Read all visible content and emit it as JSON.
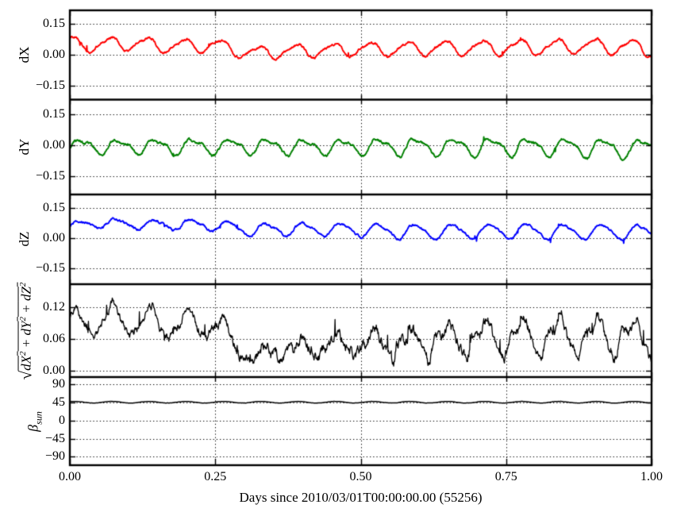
{
  "chart_data": {
    "type": "line",
    "title": "",
    "xlabel": "Days since 2010/03/01T00:00:00.00 (55256)",
    "xlim": [
      0,
      1
    ],
    "xticks": [
      [
        0,
        "0.00"
      ],
      [
        0.25,
        "0.25"
      ],
      [
        0.5,
        "0.50"
      ],
      [
        0.75,
        "0.75"
      ],
      [
        1,
        "1.00"
      ]
    ],
    "x_gridlines": [
      0.25,
      0.5,
      0.75
    ],
    "grid_style": "dotted",
    "legend": "none",
    "panels": [
      {
        "name": "dX",
        "ylabel": "dX",
        "color": "#ff0000",
        "ylim": [
          -0.215,
          0.215
        ],
        "yticks": [
          [
            0.15,
            "0.15"
          ],
          [
            0,
            "0.00"
          ],
          [
            -0.15,
            "−0.15"
          ]
        ],
        "series": {
          "n": 1440,
          "seed": 101,
          "freq_cycles_per_day": 15.6,
          "phase": 1.2,
          "harm2": 0.25,
          "harm2_phase": 2.6,
          "mean_anchors": [
            [
              0,
              0.055
            ],
            [
              0.05,
              0.048
            ],
            [
              0.1,
              0.058
            ],
            [
              0.15,
              0.048
            ],
            [
              0.2,
              0.042
            ],
            [
              0.25,
              0.05
            ],
            [
              0.28,
              0.025
            ],
            [
              0.32,
              0.008
            ],
            [
              0.36,
              0.018
            ],
            [
              0.42,
              0.022
            ],
            [
              0.5,
              0.028
            ],
            [
              0.58,
              0.03
            ],
            [
              0.66,
              0.034
            ],
            [
              0.74,
              0.036
            ],
            [
              0.82,
              0.04
            ],
            [
              0.9,
              0.042
            ],
            [
              0.96,
              0.04
            ],
            [
              1,
              0.032
            ]
          ],
          "amp_anchors": [
            [
              0,
              0.034
            ],
            [
              0.3,
              0.03
            ],
            [
              0.6,
              0.032
            ],
            [
              1,
              0.036
            ]
          ],
          "noise_sigma": 0.0035,
          "spike_prob": 0.004,
          "spike_amp": 0.018
        }
      },
      {
        "name": "dY",
        "ylabel": "dY",
        "color": "#008000",
        "ylim": [
          -0.238,
          0.223
        ],
        "yticks": [
          [
            0.15,
            "0.15"
          ],
          [
            0,
            "0.00"
          ],
          [
            -0.15,
            "−0.15"
          ]
        ],
        "series": {
          "n": 1440,
          "seed": 202,
          "freq_cycles_per_day": 15.6,
          "phase": -0.4,
          "harm2": 0.4,
          "harm2_phase": 0.9,
          "mean_anchors": [
            [
              0,
              0
            ],
            [
              0.1,
              -0.004
            ],
            [
              0.3,
              -0.006
            ],
            [
              0.5,
              -0.004
            ],
            [
              0.7,
              -0.005
            ],
            [
              0.9,
              -0.008
            ],
            [
              0.97,
              -0.018
            ],
            [
              1,
              -0.008
            ]
          ],
          "amp_anchors": [
            [
              0,
              0.03
            ],
            [
              0.2,
              0.034
            ],
            [
              0.5,
              0.036
            ],
            [
              0.8,
              0.038
            ],
            [
              1,
              0.042
            ]
          ],
          "noise_sigma": 0.004,
          "spike_prob": 0.004,
          "spike_amp": 0.015
        }
      },
      {
        "name": "dZ",
        "ylabel": "dZ",
        "color": "#0000ff",
        "ylim": [
          -0.229,
          0.217
        ],
        "yticks": [
          [
            0.15,
            "0.15"
          ],
          [
            0,
            "0.00"
          ],
          [
            -0.15,
            "−0.15"
          ]
        ],
        "series": {
          "n": 1440,
          "seed": 303,
          "freq_cycles_per_day": 15.6,
          "phase": -0.15,
          "harm2": 0.22,
          "harm2_phase": 0.4,
          "mean_anchors": [
            [
              0,
              0.062
            ],
            [
              0.06,
              0.075
            ],
            [
              0.12,
              0.068
            ],
            [
              0.2,
              0.068
            ],
            [
              0.26,
              0.062
            ],
            [
              0.3,
              0.042
            ],
            [
              0.4,
              0.045
            ],
            [
              0.5,
              0.042
            ],
            [
              0.58,
              0.032
            ],
            [
              0.7,
              0.033
            ],
            [
              0.8,
              0.034
            ],
            [
              0.9,
              0.033
            ],
            [
              1,
              0.028
            ]
          ],
          "amp_anchors": [
            [
              0,
              0.02
            ],
            [
              0.2,
              0.024
            ],
            [
              0.35,
              0.028
            ],
            [
              0.6,
              0.034
            ],
            [
              1,
              0.036
            ]
          ],
          "noise_sigma": 0.0035,
          "spike_prob": 0.003,
          "spike_amp": 0.015
        }
      },
      {
        "name": "norm",
        "ylabel_parts": {
          "radical": "√",
          "terms": [
            "dX",
            "dY",
            "dZ"
          ],
          "exponent": "2",
          "separator": " + "
        },
        "color": "#000000",
        "ylim": [
          -0.012,
          0.163
        ],
        "yticks": [
          [
            0.12,
            "0.12"
          ],
          [
            0.06,
            "0.06"
          ],
          [
            0,
            "0.00"
          ]
        ],
        "series": {
          "n": 1440,
          "seed": 404,
          "derive_norm_of": [
            "dX",
            "dY",
            "dZ"
          ],
          "read_envelope": [
            [
              0,
              0.1
            ],
            [
              0.08,
              0.12
            ],
            [
              0.16,
              0.11
            ],
            [
              0.24,
              0.1
            ],
            [
              0.3,
              0.03
            ],
            [
              0.33,
              0.02
            ],
            [
              0.42,
              0.055
            ],
            [
              0.48,
              0.03
            ],
            [
              0.56,
              0.04
            ],
            [
              0.63,
              0.07
            ],
            [
              0.72,
              0.075
            ],
            [
              0.8,
              0.06
            ],
            [
              0.83,
              0.09
            ],
            [
              0.9,
              0.08
            ],
            [
              1,
              0.065
            ]
          ],
          "scale_anchors": [
            [
              0,
              1
            ],
            [
              0.26,
              1
            ],
            [
              0.3,
              0.5
            ],
            [
              0.36,
              0.6
            ],
            [
              0.44,
              0.75
            ],
            [
              0.55,
              0.85
            ],
            [
              0.65,
              0.95
            ],
            [
              0.75,
              1
            ],
            [
              1,
              1
            ]
          ],
          "noise_anchors": [
            [
              0,
              0.003
            ],
            [
              0.27,
              0.004
            ],
            [
              0.3,
              0.007
            ],
            [
              0.55,
              0.007
            ],
            [
              0.7,
              0.005
            ],
            [
              1,
              0.005
            ]
          ],
          "spike_prob": 0.008,
          "spike_amp": 0.02
        }
      },
      {
        "name": "beta_sun",
        "ylabel_parts": {
          "base": "β",
          "sub": "sun"
        },
        "color": "#000000",
        "ylim": [
          -111,
          108
        ],
        "yticks": [
          [
            90,
            "90"
          ],
          [
            45,
            "45"
          ],
          [
            0,
            "0"
          ],
          [
            -45,
            "−45"
          ],
          [
            -90,
            "−90"
          ]
        ],
        "series": {
          "n": 1440,
          "seed": 505,
          "freq_cycles_per_day": 15.6,
          "phase": 0.8,
          "harm2": 0,
          "harm2_phase": 0,
          "mean_anchors": [
            [
              0,
              45.5
            ],
            [
              1,
              45.5
            ]
          ],
          "amp_anchors": [
            [
              0,
              2
            ],
            [
              1,
              2
            ]
          ],
          "noise_sigma": 0.15,
          "spike_prob": 0,
          "spike_amp": 0
        }
      }
    ]
  },
  "colors": {
    "dX": "#ff0000",
    "dY": "#008000",
    "dZ": "#0000ff",
    "norm": "#000000",
    "beta": "#000000",
    "frame": "#000000",
    "background": "#ffffff"
  }
}
